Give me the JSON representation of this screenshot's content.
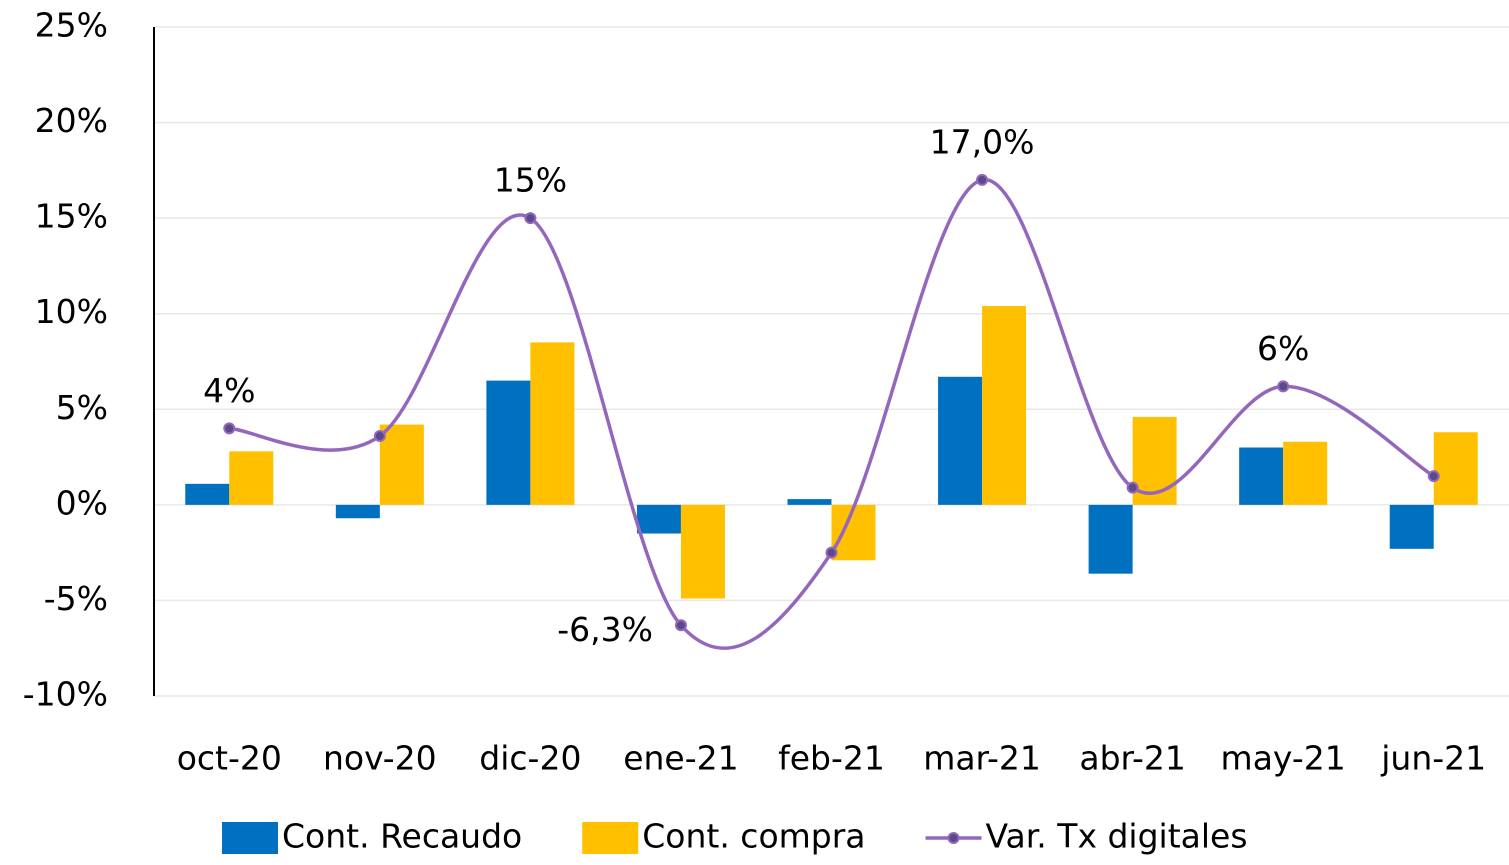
{
  "chart_data": {
    "type": "bar",
    "categories": [
      "oct-20",
      "nov-20",
      "dic-20",
      "ene-21",
      "feb-21",
      "mar-21",
      "abr-21",
      "may-21",
      "jun-21"
    ],
    "series": [
      {
        "name": "Cont. Recaudo",
        "type": "bar",
        "color": "#0070c0",
        "values": [
          1.1,
          -0.7,
          6.5,
          -1.5,
          0.3,
          6.7,
          -3.6,
          3.0,
          -2.3
        ]
      },
      {
        "name": "Cont. compra",
        "type": "bar",
        "color": "#ffc000",
        "values": [
          2.8,
          4.2,
          8.5,
          -4.9,
          -2.9,
          10.4,
          4.6,
          3.3,
          3.8
        ]
      },
      {
        "name": "Var. Tx digitales",
        "type": "line",
        "color": "#9467bd",
        "values": [
          4,
          3.6,
          15,
          -6.3,
          -2.5,
          17.0,
          0.9,
          6.2,
          1.5
        ],
        "value_labels": [
          "4%",
          null,
          "15%",
          "-6,3%",
          null,
          "17,0%",
          null,
          "6%",
          null
        ]
      }
    ],
    "ylim": [
      -10,
      25
    ],
    "yticks": [
      {
        "value": -10,
        "label": "-10%"
      },
      {
        "value": -5,
        "label": "-5%"
      },
      {
        "value": 0,
        "label": "0%"
      },
      {
        "value": 5,
        "label": "5%"
      },
      {
        "value": 10,
        "label": "10%"
      },
      {
        "value": 15,
        "label": "15%"
      },
      {
        "value": 20,
        "label": "20%"
      },
      {
        "value": 25,
        "label": "25%"
      }
    ],
    "grid": true,
    "legend": "bottom"
  }
}
